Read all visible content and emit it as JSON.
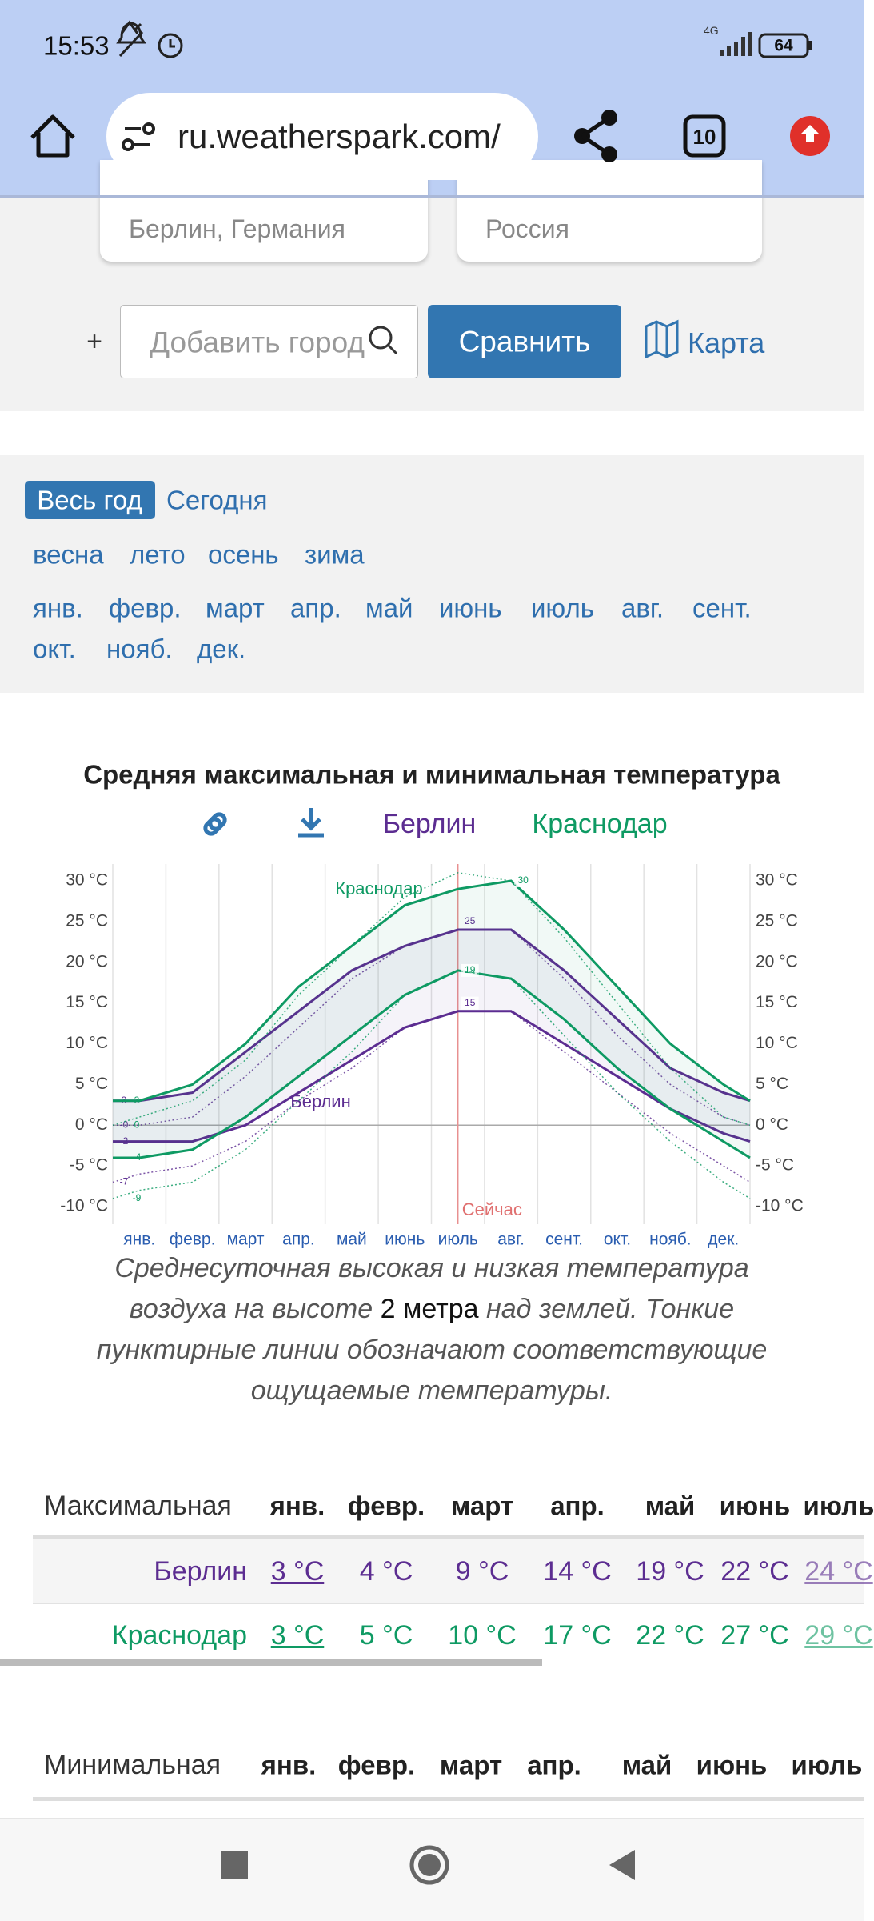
{
  "status_bar": {
    "time": "15:53",
    "network": "4G",
    "battery": "64"
  },
  "browser": {
    "url": "ru.weatherspark.com/",
    "tabs": "10"
  },
  "compare": {
    "places": [
      "Берлин, Германия",
      "Россия"
    ],
    "add_sign": "+",
    "add_placeholder": "Добавить город",
    "button": "Сравнить",
    "map": "Карта"
  },
  "periods": {
    "tabs": [
      "Весь год",
      "Сегодня"
    ],
    "seasons": [
      "весна",
      "лето",
      "осень",
      "зима"
    ],
    "months": [
      "янв.",
      "февр.",
      "март",
      "апр.",
      "май",
      "июнь",
      "июль",
      "авг.",
      "сент.",
      "окт.",
      "нояб.",
      "дек."
    ]
  },
  "chart_data": {
    "type": "line",
    "title": "Средняя максимальная и минимальная температура",
    "categories": [
      "янв.",
      "февр.",
      "март",
      "апр.",
      "май",
      "июнь",
      "июль",
      "авг.",
      "сент.",
      "окт.",
      "нояб.",
      "дек."
    ],
    "ylim": [
      -10,
      30
    ],
    "yticks": [
      {
        "value": -10,
        "label": "-10 °C"
      },
      {
        "value": -5,
        "label": "-5 °C"
      },
      {
        "value": 0,
        "label": "0 °C"
      },
      {
        "value": 5,
        "label": "5 °C"
      },
      {
        "value": 10,
        "label": "10 °C"
      },
      {
        "value": 15,
        "label": "15 °C"
      },
      {
        "value": 20,
        "label": "20 °C"
      },
      {
        "value": 25,
        "label": "25 °C"
      },
      {
        "value": 30,
        "label": "30 °C"
      }
    ],
    "y2lim": [
      -10,
      30
    ],
    "y2ticks": [
      {
        "value": -10,
        "label": "-10 °C"
      },
      {
        "value": -5,
        "label": "-5 °C"
      },
      {
        "value": 0,
        "label": "0 °C"
      },
      {
        "value": 5,
        "label": "5 °C"
      },
      {
        "value": 10,
        "label": "10 °C"
      },
      {
        "value": 15,
        "label": "15 °C"
      },
      {
        "value": 20,
        "label": "20 °C"
      },
      {
        "value": 25,
        "label": "25 °C"
      },
      {
        "value": 30,
        "label": "30 °C"
      }
    ],
    "now_label": "Сейчас",
    "now_category": "июль",
    "series": [
      {
        "name": "Берлин",
        "color": "#5c2d91",
        "lines": [
          {
            "style": "solid",
            "start": 3,
            "values": [
              3,
              4,
              9,
              14,
              19,
              22,
              24,
              24,
              19,
              13,
              7,
              4
            ],
            "peak": 25
          },
          {
            "style": "solid",
            "start": -2,
            "values": [
              -2,
              -2,
              0,
              4,
              8,
              12,
              14,
              14,
              10,
              6,
              2,
              -1
            ],
            "peak": 15
          },
          {
            "style": "dotted",
            "start": 0,
            "start_label": "-0",
            "values": [
              0,
              1,
              6,
              12,
              18,
              22,
              24,
              24,
              18,
              11,
              5,
              1
            ]
          },
          {
            "style": "dotted",
            "start": -7,
            "values": [
              -6,
              -5,
              -2,
              3,
              7,
              12,
              14,
              14,
              9,
              4,
              -1,
              -5
            ]
          }
        ]
      },
      {
        "name": "Краснодар",
        "color": "#0e9a63",
        "lines": [
          {
            "style": "solid",
            "start": 3,
            "values": [
              3,
              5,
              10,
              17,
              22,
              27,
              29,
              30,
              24,
              17,
              10,
              5
            ],
            "peak": 30
          },
          {
            "style": "solid",
            "start": -4,
            "values": [
              -4,
              -3,
              1,
              6,
              11,
              16,
              19,
              18,
              13,
              7,
              2,
              -2
            ],
            "peak": 19
          },
          {
            "style": "dotted",
            "start": 0,
            "values": [
              1,
              3,
              8,
              16,
              22,
              28,
              31,
              30,
              23,
              15,
              7,
              1
            ]
          },
          {
            "style": "dotted",
            "start": -9,
            "values": [
              -8,
              -7,
              -3,
              3,
              9,
              16,
              19,
              18,
              11,
              4,
              -2,
              -7
            ]
          }
        ]
      }
    ]
  },
  "caption": [
    "Среднесуточная высокая и низкая температура воздуха на высоте ",
    "2 метра",
    " над землей. Тонкие пунктирные линии обозначают соответствующие ощущаемые температуры."
  ],
  "tables": [
    {
      "heading": "Максимальная",
      "columns": [
        "янв.",
        "февр.",
        "март",
        "апр.",
        "май",
        "июнь",
        "июль"
      ],
      "rows": [
        {
          "name": "Берлин",
          "cells": [
            "3 °C",
            "4 °C",
            "9 °C",
            "14 °C",
            "19 °C",
            "22 °C",
            "24 °C"
          ]
        },
        {
          "name": "Краснодар",
          "cells": [
            "3 °C",
            "5 °C",
            "10 °C",
            "17 °C",
            "22 °C",
            "27 °C",
            "29 °C"
          ]
        }
      ]
    },
    {
      "heading": "Минимальная",
      "columns": [
        "янв.",
        "февр.",
        "март",
        "апр.",
        "май",
        "июнь",
        "июль"
      ]
    }
  ]
}
